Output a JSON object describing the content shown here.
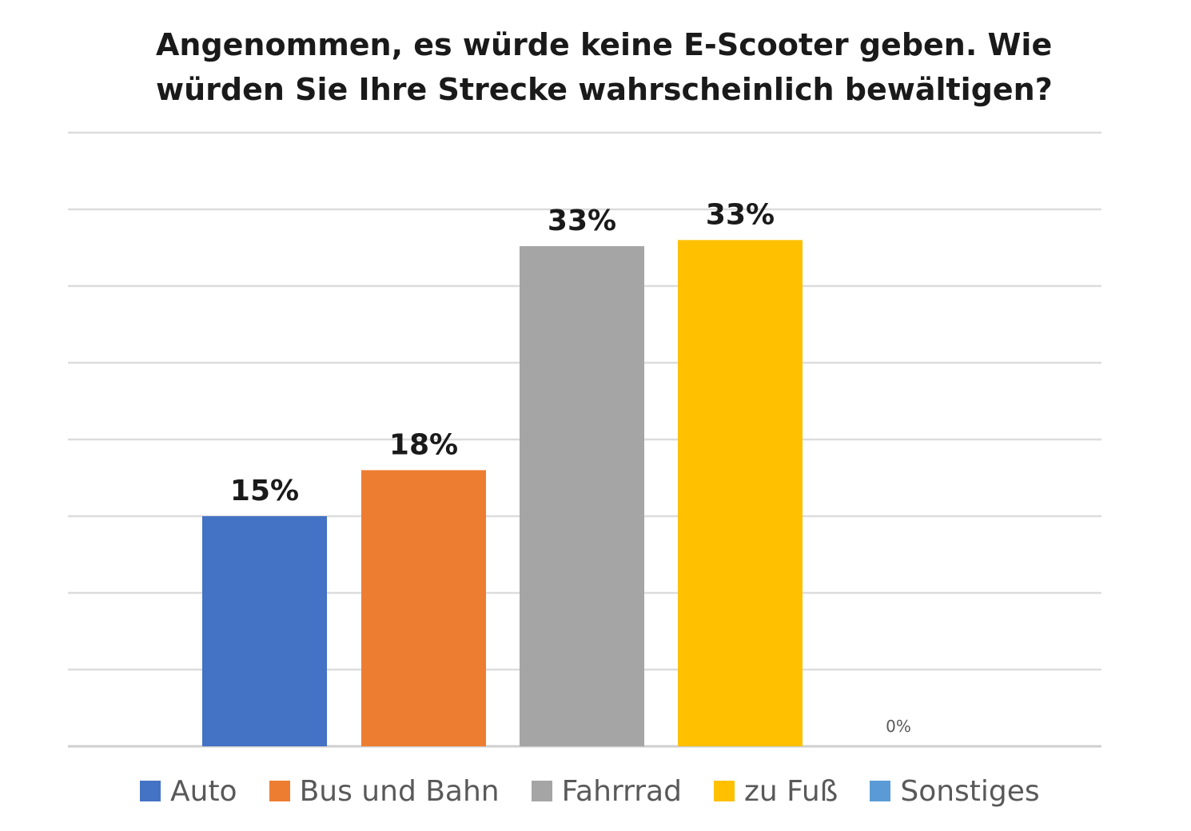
{
  "chart_data": {
    "type": "bar",
    "title": [
      "Angenommen, es würde keine E-Scooter geben. Wie",
      "würden Sie Ihre Strecke wahrscheinlich bewältigen?"
    ],
    "categories": [
      "Auto",
      "Bus und Bahn",
      "Fahrrrad",
      "zu Fuß",
      "Sonstiges"
    ],
    "values": [
      15,
      18,
      33,
      33,
      0
    ],
    "bar_values_precise": [
      15.0,
      18.0,
      32.6,
      33.0,
      0.0
    ],
    "data_labels": [
      "15%",
      "18%",
      "33%",
      "33%",
      "0%"
    ],
    "colors": [
      "#4472C4",
      "#ED7D31",
      "#A5A5A5",
      "#FFC000",
      "#5B9BD5"
    ],
    "ylim": [
      0,
      40
    ],
    "grid": true,
    "legend_position": "bottom"
  }
}
